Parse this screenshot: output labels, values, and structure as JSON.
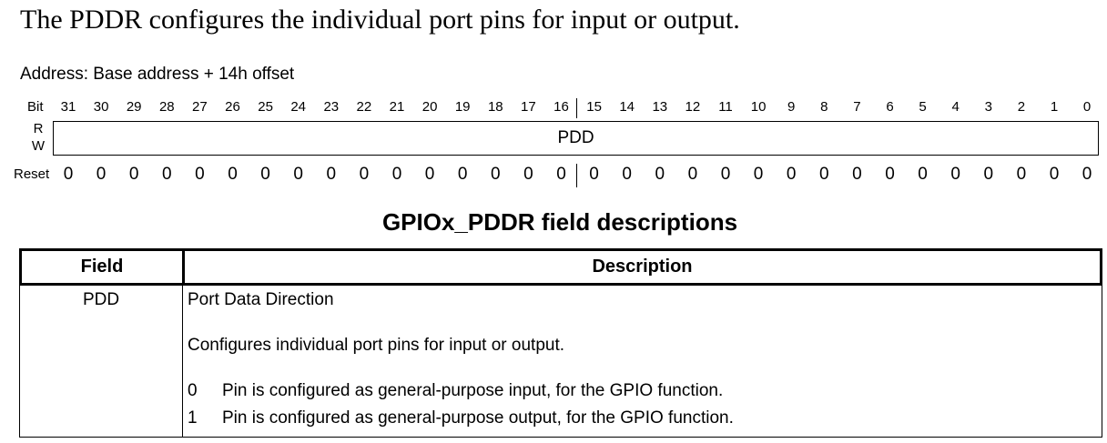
{
  "intro_text": "The PDDR configures the individual port pins for input or output.",
  "address_text": "Address: Base address + 14h offset",
  "register": {
    "bit_label": "Bit",
    "bits": [
      "31",
      "30",
      "29",
      "28",
      "27",
      "26",
      "25",
      "24",
      "23",
      "22",
      "21",
      "20",
      "19",
      "18",
      "17",
      "16",
      "15",
      "14",
      "13",
      "12",
      "11",
      "10",
      "9",
      "8",
      "7",
      "6",
      "5",
      "4",
      "3",
      "2",
      "1",
      "0"
    ],
    "r_label": "R",
    "w_label": "W",
    "field_name": "PDD",
    "reset_label": "Reset",
    "reset_values": [
      "0",
      "0",
      "0",
      "0",
      "0",
      "0",
      "0",
      "0",
      "0",
      "0",
      "0",
      "0",
      "0",
      "0",
      "0",
      "0",
      "0",
      "0",
      "0",
      "0",
      "0",
      "0",
      "0",
      "0",
      "0",
      "0",
      "0",
      "0",
      "0",
      "0",
      "0",
      "0"
    ]
  },
  "table": {
    "title": "GPIOx_PDDR field descriptions",
    "headers": {
      "field": "Field",
      "description": "Description"
    },
    "rows": [
      {
        "field": "PDD",
        "title": "Port Data Direction",
        "summary": "Configures individual port pins for input or output.",
        "values": [
          {
            "value": "0",
            "description": "Pin is configured as general-purpose input, for the GPIO function."
          },
          {
            "value": "1",
            "description": "Pin is configured as general-purpose output, for the GPIO function."
          }
        ]
      }
    ]
  }
}
